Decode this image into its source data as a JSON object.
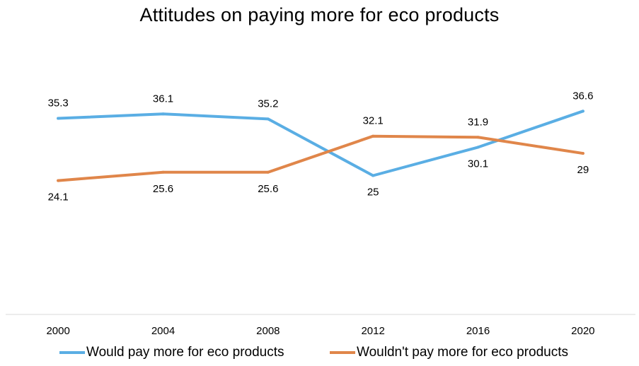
{
  "chart_data": {
    "type": "line",
    "title": "Attitudes on paying more for eco products",
    "xlabel": "",
    "ylabel": "",
    "categories": [
      "2000",
      "2004",
      "2008",
      "2012",
      "2016",
      "2020"
    ],
    "ylim": [
      0,
      45
    ],
    "grid": false,
    "legend_position": "bottom",
    "series": [
      {
        "name": "Would pay more for eco products",
        "color": "#5AAEE4",
        "values": [
          35.3,
          36.1,
          35.2,
          25,
          30.1,
          36.6
        ],
        "labels": [
          "35.3",
          "36.1",
          "35.2",
          "25",
          "30.1",
          "36.6"
        ],
        "label_side": [
          "above",
          "above",
          "above",
          "below",
          "below",
          "above"
        ]
      },
      {
        "name": "Wouldn't pay more for eco products",
        "color": "#E0864A",
        "values": [
          24.1,
          25.6,
          25.6,
          32.1,
          31.9,
          29
        ],
        "labels": [
          "24.1",
          "25.6",
          "25.6",
          "32.1",
          "31.9",
          "29"
        ],
        "label_side": [
          "below",
          "below",
          "below",
          "above",
          "above",
          "below"
        ]
      }
    ]
  }
}
